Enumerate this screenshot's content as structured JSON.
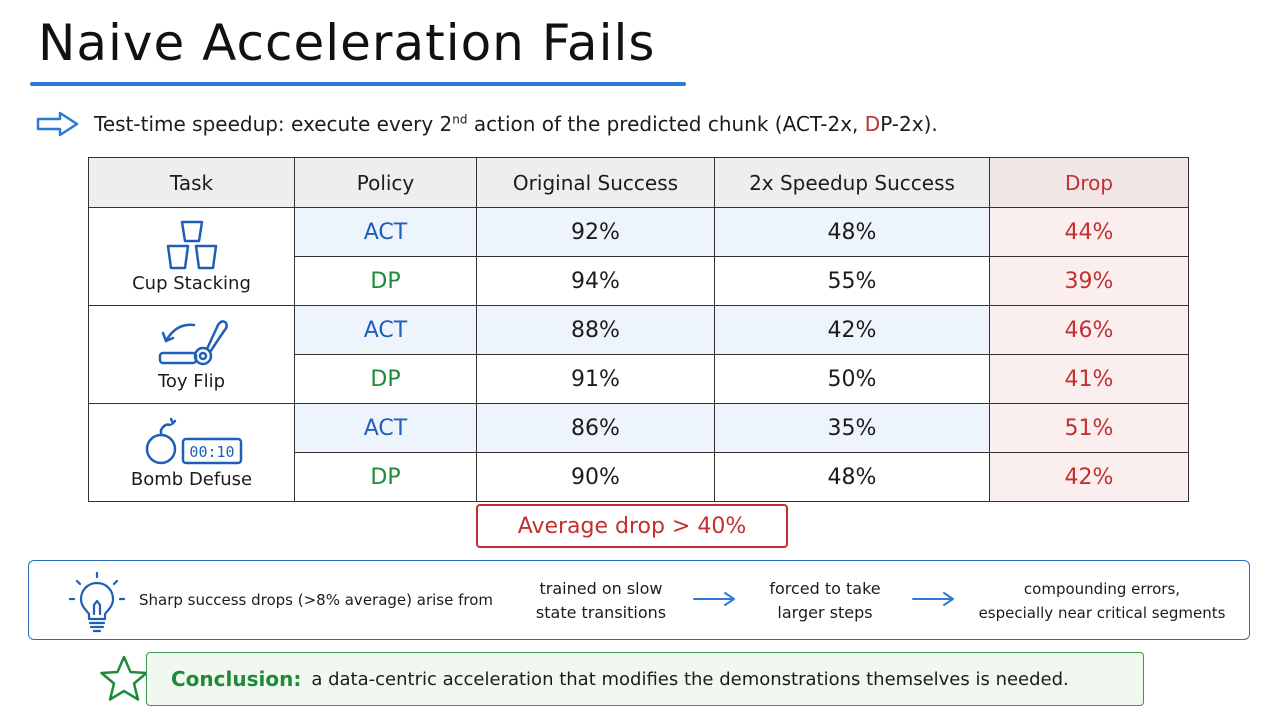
{
  "title": "Naive Acceleration Fails",
  "subtitle": {
    "prefix": "Test-time speedup: execute every 2",
    "sup": "nd",
    "middle": " action of the predicted chunk (ACT-2x, ",
    "red": "D",
    "rest": "P-2x)."
  },
  "table": {
    "headers": [
      "Task",
      "Policy",
      "Original Success",
      "2x Speedup Success",
      "Drop"
    ],
    "tasks": [
      {
        "name": "Cup Stacking",
        "icon": "cup-stack-icon",
        "rows": [
          {
            "policy": "ACT",
            "original": "92%",
            "speedup": "48%",
            "drop": "44%"
          },
          {
            "policy": "DP",
            "original": "94%",
            "speedup": "55%",
            "drop": "39%"
          }
        ]
      },
      {
        "name": "Toy Flip",
        "icon": "toy-flip-icon",
        "rows": [
          {
            "policy": "ACT",
            "original": "88%",
            "speedup": "42%",
            "drop": "46%"
          },
          {
            "policy": "DP",
            "original": "91%",
            "speedup": "50%",
            "drop": "41%"
          }
        ]
      },
      {
        "name": "Bomb Defuse",
        "icon": "bomb-timer-icon",
        "timer": "00:10",
        "rows": [
          {
            "policy": "ACT",
            "original": "86%",
            "speedup": "35%",
            "drop": "51%"
          },
          {
            "policy": "DP",
            "original": "90%",
            "speedup": "48%",
            "drop": "42%"
          }
        ]
      }
    ]
  },
  "average_drop": "Average drop > 40%",
  "insight": {
    "icon": "lightbulb-icon",
    "lead": "Sharp success drops (>8% average) arise from",
    "steps": [
      {
        "line1": "trained on slow",
        "line2": "state transitions"
      },
      {
        "line1": "forced to take",
        "line2": "larger steps"
      },
      {
        "line1": "compounding errors,",
        "line2": "especially near critical segments"
      }
    ]
  },
  "conclusion": {
    "label": "Conclusion:",
    "text": "a data-centric acceleration that modifies the demonstrations themselves is needed."
  },
  "colors": {
    "accent_blue": "#2a7bd5",
    "act_blue": "#1f5fb8",
    "dp_green": "#1e8a3a",
    "drop_red": "#c23030"
  }
}
